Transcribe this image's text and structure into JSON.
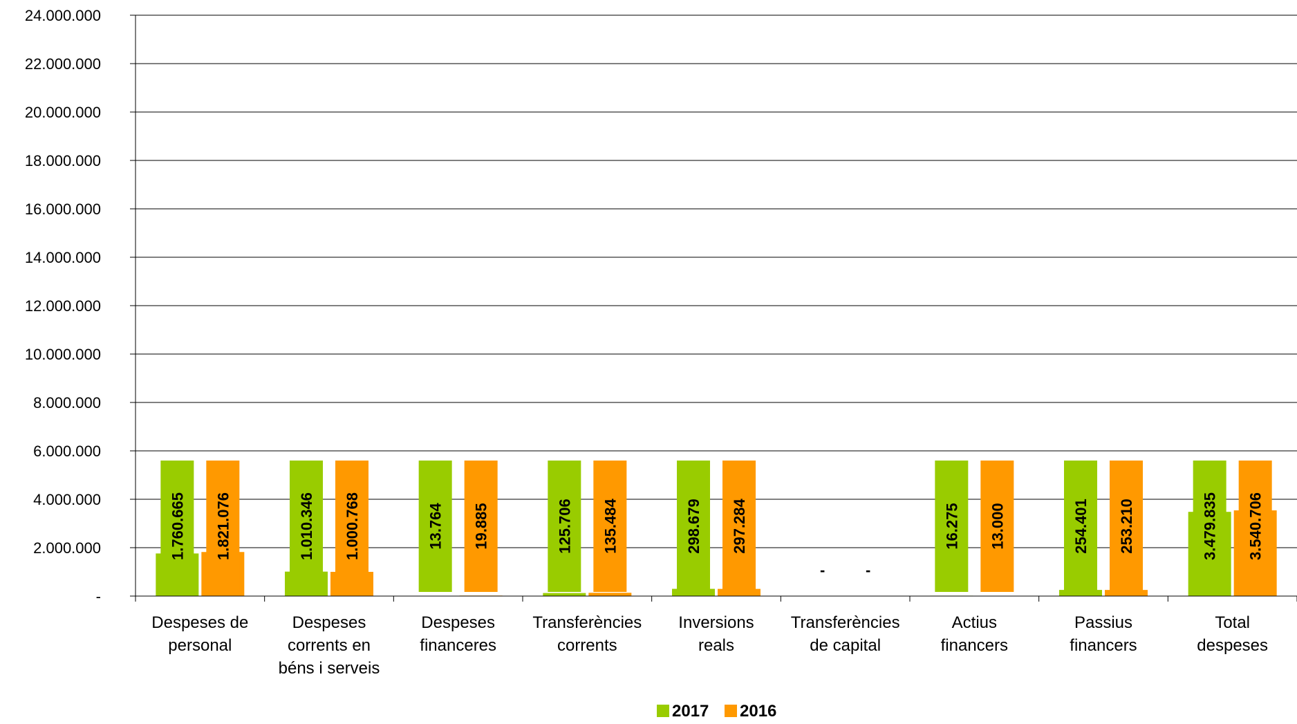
{
  "chart_data": {
    "type": "bar",
    "title": "",
    "xlabel": "",
    "ylabel": "",
    "ylim": [
      0,
      24000000
    ],
    "grid": true,
    "legend_position": "bottom",
    "y_ticks": [
      "-",
      "2.000.000",
      "4.000.000",
      "6.000.000",
      "8.000.000",
      "10.000.000",
      "12.000.000",
      "14.000.000",
      "16.000.000",
      "18.000.000",
      "20.000.000",
      "22.000.000",
      "24.000.000"
    ],
    "categories": [
      [
        "Despeses de",
        "personal"
      ],
      [
        "Despeses",
        "corrents en",
        "béns i serveis"
      ],
      [
        "Despeses",
        "financeres"
      ],
      [
        "Transferències",
        "corrents"
      ],
      [
        "Inversions",
        "reals"
      ],
      [
        "Transferències",
        "de capital"
      ],
      [
        "Actius",
        "financers"
      ],
      [
        "Passius",
        "financers"
      ],
      [
        "Total",
        "despeses"
      ]
    ],
    "series": [
      {
        "name": "2017",
        "color": "#99cc00",
        "values": [
          1760665,
          1010346,
          13764,
          125706,
          298679,
          0,
          16275,
          254401,
          3479835
        ],
        "labels": [
          "1.760.665",
          "1.010.346",
          "13.764",
          "125.706",
          "298.679",
          "-",
          "16.275",
          "254.401",
          "3.479.835"
        ]
      },
      {
        "name": "2016",
        "color": "#ff9900",
        "values": [
          1821076,
          1000768,
          19885,
          135484,
          297284,
          0,
          13000,
          253210,
          3540706
        ],
        "labels": [
          "1.821.076",
          "1.000.768",
          "19.885",
          "135.484",
          "297.284",
          "-",
          "13.000",
          "253.210",
          "3.540.706"
        ]
      }
    ]
  }
}
